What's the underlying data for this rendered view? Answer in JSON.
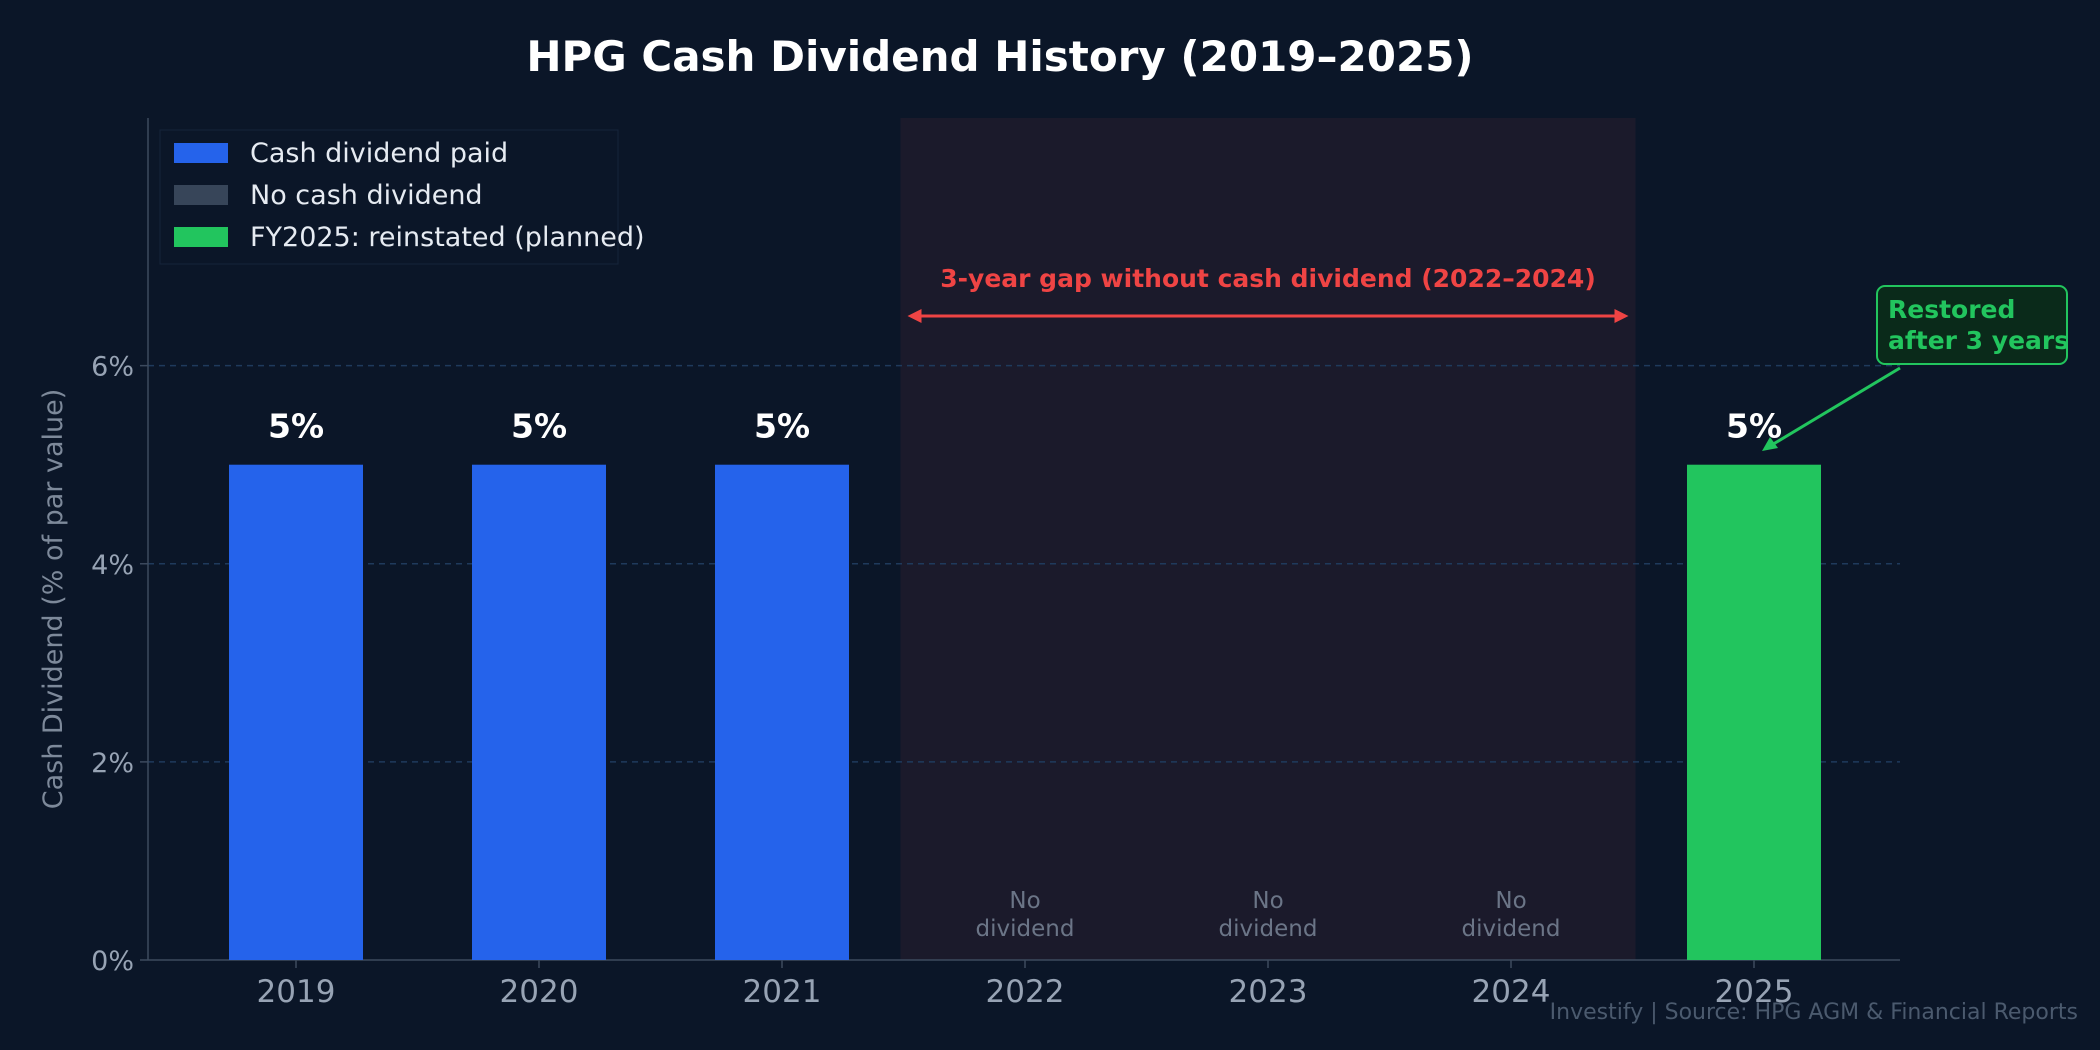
{
  "chart_data": {
    "type": "bar",
    "title": "HPG Cash Dividend History (2019–2025)",
    "xlabel": "",
    "ylabel": "Cash Dividend (% of par value)",
    "categories": [
      "2019",
      "2020",
      "2021",
      "2022",
      "2023",
      "2024",
      "2025"
    ],
    "values": [
      5,
      5,
      5,
      0,
      0,
      0,
      5
    ],
    "value_labels": [
      "5%",
      "5%",
      "5%",
      "",
      "",
      "",
      "5%"
    ],
    "bar_status": [
      "paid",
      "paid",
      "paid",
      "none",
      "none",
      "none",
      "reinstated"
    ],
    "ylim": [
      0,
      8.5
    ],
    "yticks": [
      0,
      2,
      4,
      6
    ],
    "ytick_labels": [
      "0%",
      "2%",
      "4%",
      "6%"
    ],
    "grid": true,
    "legend_position": "top-left",
    "legend": [
      {
        "key": "paid",
        "label": "Cash dividend paid",
        "color": "#2563eb"
      },
      {
        "key": "none",
        "label": "No cash dividend",
        "color": "#374559"
      },
      {
        "key": "reinstated",
        "label": "FY2025: reinstated (planned)",
        "color": "#22c55e"
      }
    ],
    "no_dividend_label": [
      "No",
      "dividend"
    ],
    "gap_annotation": {
      "text": "3-year gap without cash dividend (2022–2024)",
      "from_category": "2022",
      "to_category": "2024",
      "color": "#ef4444"
    },
    "callout": {
      "lines": [
        "Restored",
        "after 3 years"
      ],
      "target_category": "2025",
      "color": "#22c55e"
    }
  },
  "source_note": "Investify | Source: HPG AGM & Financial Reports"
}
